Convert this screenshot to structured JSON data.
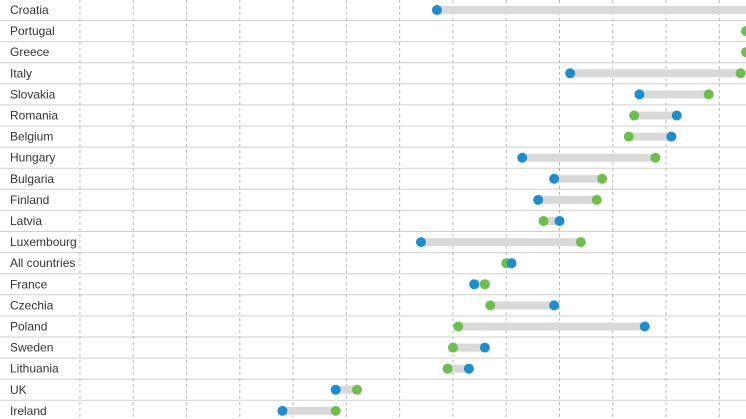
{
  "chart_data": {
    "type": "dumbbell",
    "title": "",
    "xlabel": "",
    "ylabel": "",
    "grid": true,
    "x_range": [
      -2.5,
      11.5
    ],
    "colors": {
      "series_a": "#1b8ed1",
      "series_b": "#6cc04a",
      "connector": "#d9d9d9",
      "row_line": "#d0d0d0",
      "grid_line": "#b8b8b8"
    },
    "categories": [
      "Croatia",
      "Portugal",
      "Greece",
      "Italy",
      "Slovakia",
      "Romania",
      "Belgium",
      "Hungary",
      "Bulgaria",
      "Finland",
      "Latvia",
      "Luxembourg",
      "All countries",
      "France",
      "Czechia",
      "Poland",
      "Sweden",
      "Lithuania",
      "UK",
      "Ireland"
    ],
    "series": [
      {
        "color_key": "series_a",
        "values": [
          5.7,
          11.6,
          11.7,
          8.2,
          9.5,
          10.2,
          10.1,
          7.3,
          7.9,
          7.6,
          8.0,
          5.4,
          7.1,
          6.4,
          7.9,
          9.6,
          6.6,
          6.3,
          3.8,
          2.8
        ]
      },
      {
        "color_key": "series_b",
        "values": [
          12.7,
          11.5,
          11.5,
          11.4,
          10.8,
          9.4,
          9.3,
          9.8,
          8.8,
          8.7,
          7.7,
          8.4,
          7.0,
          6.6,
          6.7,
          6.1,
          6.0,
          5.9,
          4.2,
          3.8
        ]
      }
    ]
  }
}
